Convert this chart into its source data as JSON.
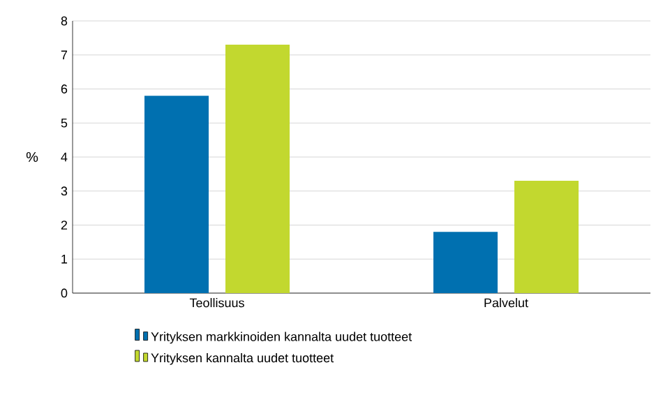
{
  "chart_data": {
    "type": "bar",
    "ylabel": "%",
    "categories": [
      "Teollisuus",
      "Palvelut"
    ],
    "series": [
      {
        "name": "Yrityksen markkinoiden kannalta uudet tuotteet",
        "color": "#0070b0",
        "values": [
          5.8,
          1.8
        ]
      },
      {
        "name": "Yrityksen kannalta uudet tuotteet",
        "color": "#c2d82f",
        "values": [
          7.3,
          3.3
        ]
      }
    ],
    "ylim": [
      0,
      8
    ],
    "yticks": [
      0,
      1,
      2,
      3,
      4,
      5,
      6,
      7,
      8
    ],
    "grid": "y",
    "legend": "bottom"
  }
}
